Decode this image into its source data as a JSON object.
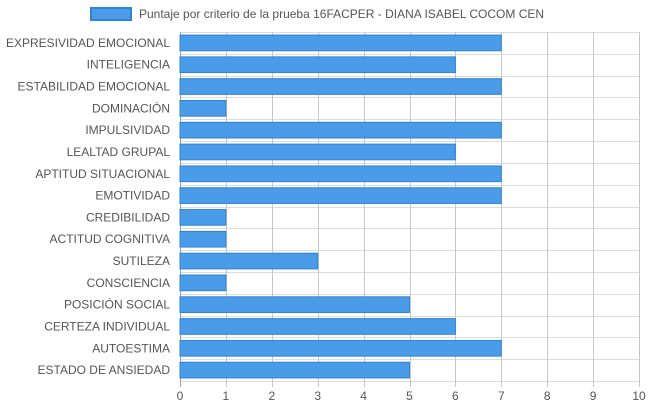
{
  "chart_data": {
    "type": "bar",
    "orientation": "horizontal",
    "legend": {
      "label": "Puntaje por criterio de la prueba 16FACPER - DIANA ISABEL COCOM CEN",
      "placement": "top-center"
    },
    "series": [
      {
        "name": "Puntaje por criterio de la prueba 16FACPER - DIANA ISABEL COCOM CEN",
        "values": [
          7,
          6,
          7,
          1,
          7,
          6,
          7,
          7,
          1,
          1,
          3,
          1,
          5,
          6,
          7,
          5
        ]
      }
    ],
    "categories": [
      "EXPRESIVIDAD EMOCIONAL",
      "INTELIGENCIA",
      "ESTABILIDAD EMOCIONAL",
      "DOMINACIÓN",
      "IMPULSIVIDAD",
      "LEALTAD GRUPAL",
      "APTITUD SITUACIONAL",
      "EMOTIVIDAD",
      "CREDIBILIDAD",
      "ACTITUD COGNITIVA",
      "SUTILEZA",
      "CONSCIENCIA",
      "POSICIÓN SOCIAL",
      "CERTEZA INDIVIDUAL",
      "AUTOESTIMA",
      "ESTADO DE ANSIEDAD"
    ],
    "xlim": [
      0,
      10
    ],
    "x_ticks": [
      "0",
      "1",
      "2",
      "3",
      "4",
      "5",
      "6",
      "7",
      "8",
      "9",
      "10"
    ],
    "grid": true,
    "colors": {
      "bar_fill": "#4a9be8",
      "bar_stroke": "#2f84d6",
      "grid": "#dcdcdc"
    }
  }
}
